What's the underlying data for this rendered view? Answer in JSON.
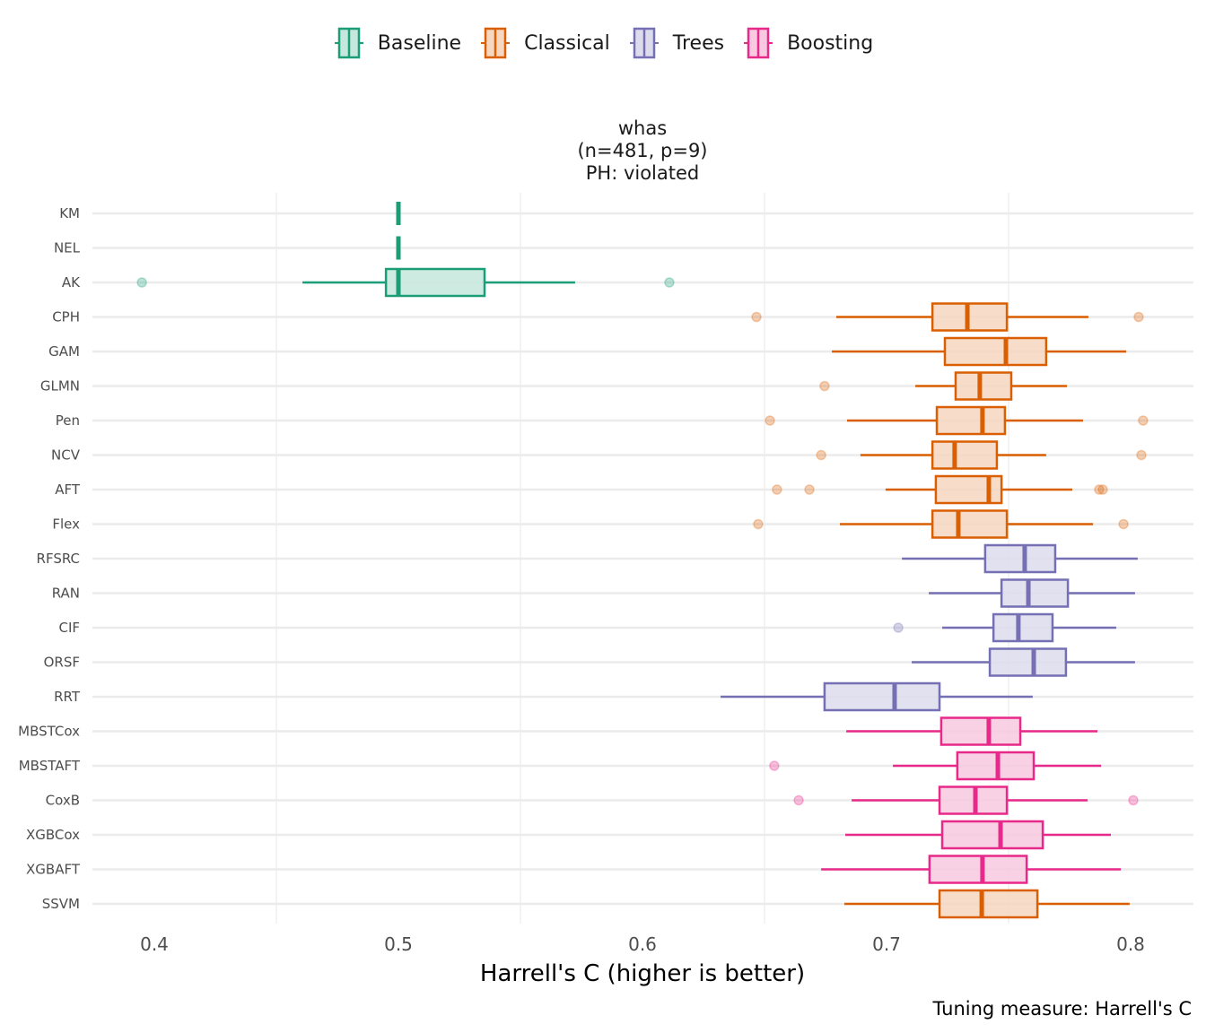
{
  "legend": [
    {
      "name": "Baseline",
      "color": "#1B9E77",
      "fill": "#C6E7DC"
    },
    {
      "name": "Classical",
      "color": "#D95F02",
      "fill": "#F6D7C0"
    },
    {
      "name": "Trees",
      "color": "#7570B3",
      "fill": "#DDDCEC"
    },
    {
      "name": "Boosting",
      "color": "#E7298A",
      "fill": "#F8C9E1"
    }
  ],
  "chart_data": {
    "type": "boxplot-horizontal",
    "title_lines": [
      "whas",
      "(n=481, p=9)",
      "PH: violated"
    ],
    "xlabel": "Harrell's C (higher is better)",
    "caption": "Tuning measure: Harrell's C",
    "xlim": [
      0.3755,
      0.8265
    ],
    "xticks": [
      0.4,
      0.5,
      0.6,
      0.7,
      0.8
    ],
    "xtick_labels": [
      "0.4",
      "0.5",
      "0.6",
      "0.7",
      "0.8"
    ],
    "minor_grid": [
      0.45,
      0.55,
      0.65,
      0.75
    ],
    "grid": true,
    "legend_position": "top",
    "categories": [
      "KM",
      "NEL",
      "AK",
      "CPH",
      "GAM",
      "GLMN",
      "Pen",
      "NCV",
      "AFT",
      "Flex",
      "RFSRC",
      "RAN",
      "CIF",
      "ORSF",
      "RRT",
      "MBSTCox",
      "MBSTAFT",
      "CoxB",
      "XGBCox",
      "XGBAFT",
      "SSVM"
    ],
    "series": [
      {
        "name": "KM",
        "group": "Baseline",
        "lo": 0.5,
        "q1": 0.5,
        "median": 0.5,
        "q3": 0.5,
        "hi": 0.5,
        "outliers": []
      },
      {
        "name": "NEL",
        "group": "Baseline",
        "lo": 0.5,
        "q1": 0.5,
        "median": 0.5,
        "q3": 0.5,
        "hi": 0.5,
        "outliers": []
      },
      {
        "name": "AK",
        "group": "Baseline",
        "lo": 0.4607,
        "q1": 0.4949,
        "median": 0.5,
        "q3": 0.5353,
        "hi": 0.5724,
        "outliers": [
          0.3949,
          0.611
        ]
      },
      {
        "name": "CPH",
        "group": "Classical",
        "lo": 0.6794,
        "q1": 0.7188,
        "median": 0.7331,
        "q3": 0.7493,
        "hi": 0.7827,
        "outliers": [
          0.6467,
          0.8033
        ]
      },
      {
        "name": "GAM",
        "group": "Classical",
        "lo": 0.6776,
        "q1": 0.7239,
        "median": 0.7489,
        "q3": 0.7654,
        "hi": 0.7982,
        "outliers": []
      },
      {
        "name": "GLMN",
        "group": "Classical",
        "lo": 0.7118,
        "q1": 0.7283,
        "median": 0.7382,
        "q3": 0.7511,
        "hi": 0.7739,
        "outliers": [
          0.6746
        ]
      },
      {
        "name": "Pen",
        "group": "Classical",
        "lo": 0.6838,
        "q1": 0.7206,
        "median": 0.7393,
        "q3": 0.7485,
        "hi": 0.7805,
        "outliers": [
          0.6522,
          0.8051
        ]
      },
      {
        "name": "NCV",
        "group": "Classical",
        "lo": 0.6893,
        "q1": 0.7188,
        "median": 0.7279,
        "q3": 0.7452,
        "hi": 0.7654,
        "outliers": [
          0.6732,
          0.8044
        ]
      },
      {
        "name": "AFT",
        "group": "Classical",
        "lo": 0.6996,
        "q1": 0.7202,
        "median": 0.7419,
        "q3": 0.7471,
        "hi": 0.7761,
        "outliers": [
          0.6551,
          0.6684,
          0.7871,
          0.7886
        ]
      },
      {
        "name": "Flex",
        "group": "Classical",
        "lo": 0.6809,
        "q1": 0.7188,
        "median": 0.7294,
        "q3": 0.7493,
        "hi": 0.7846,
        "outliers": [
          0.6474,
          0.7971
        ]
      },
      {
        "name": "RFSRC",
        "group": "Trees",
        "lo": 0.7063,
        "q1": 0.7404,
        "median": 0.7566,
        "q3": 0.7691,
        "hi": 0.8029,
        "outliers": []
      },
      {
        "name": "RAN",
        "group": "Trees",
        "lo": 0.7173,
        "q1": 0.7471,
        "median": 0.7581,
        "q3": 0.7743,
        "hi": 0.8018,
        "outliers": []
      },
      {
        "name": "CIF",
        "group": "Trees",
        "lo": 0.7228,
        "q1": 0.7438,
        "median": 0.754,
        "q3": 0.768,
        "hi": 0.7941,
        "outliers": [
          0.7048
        ]
      },
      {
        "name": "ORSF",
        "group": "Trees",
        "lo": 0.7103,
        "q1": 0.7423,
        "median": 0.7603,
        "q3": 0.7735,
        "hi": 0.8018,
        "outliers": []
      },
      {
        "name": "RRT",
        "group": "Trees",
        "lo": 0.632,
        "q1": 0.6746,
        "median": 0.7033,
        "q3": 0.7217,
        "hi": 0.7599,
        "outliers": []
      },
      {
        "name": "MBSTCox",
        "group": "Boosting",
        "lo": 0.6835,
        "q1": 0.7224,
        "median": 0.7419,
        "q3": 0.7548,
        "hi": 0.7864,
        "outliers": []
      },
      {
        "name": "MBSTAFT",
        "group": "Boosting",
        "lo": 0.7026,
        "q1": 0.729,
        "median": 0.7456,
        "q3": 0.7603,
        "hi": 0.7879,
        "outliers": [
          0.654
        ]
      },
      {
        "name": "CoxB",
        "group": "Boosting",
        "lo": 0.6857,
        "q1": 0.7217,
        "median": 0.7364,
        "q3": 0.7493,
        "hi": 0.7824,
        "outliers": [
          0.664,
          0.8011
        ]
      },
      {
        "name": "XGBCox",
        "group": "Boosting",
        "lo": 0.6831,
        "q1": 0.7228,
        "median": 0.7467,
        "q3": 0.764,
        "hi": 0.7919,
        "outliers": []
      },
      {
        "name": "XGBAFT",
        "group": "Boosting",
        "lo": 0.6732,
        "q1": 0.7176,
        "median": 0.7393,
        "q3": 0.7574,
        "hi": 0.796,
        "outliers": []
      },
      {
        "name": "SSVM",
        "group": "Classical",
        "lo": 0.6827,
        "q1": 0.7217,
        "median": 0.739,
        "q3": 0.7618,
        "hi": 0.7996,
        "outliers": []
      }
    ]
  }
}
